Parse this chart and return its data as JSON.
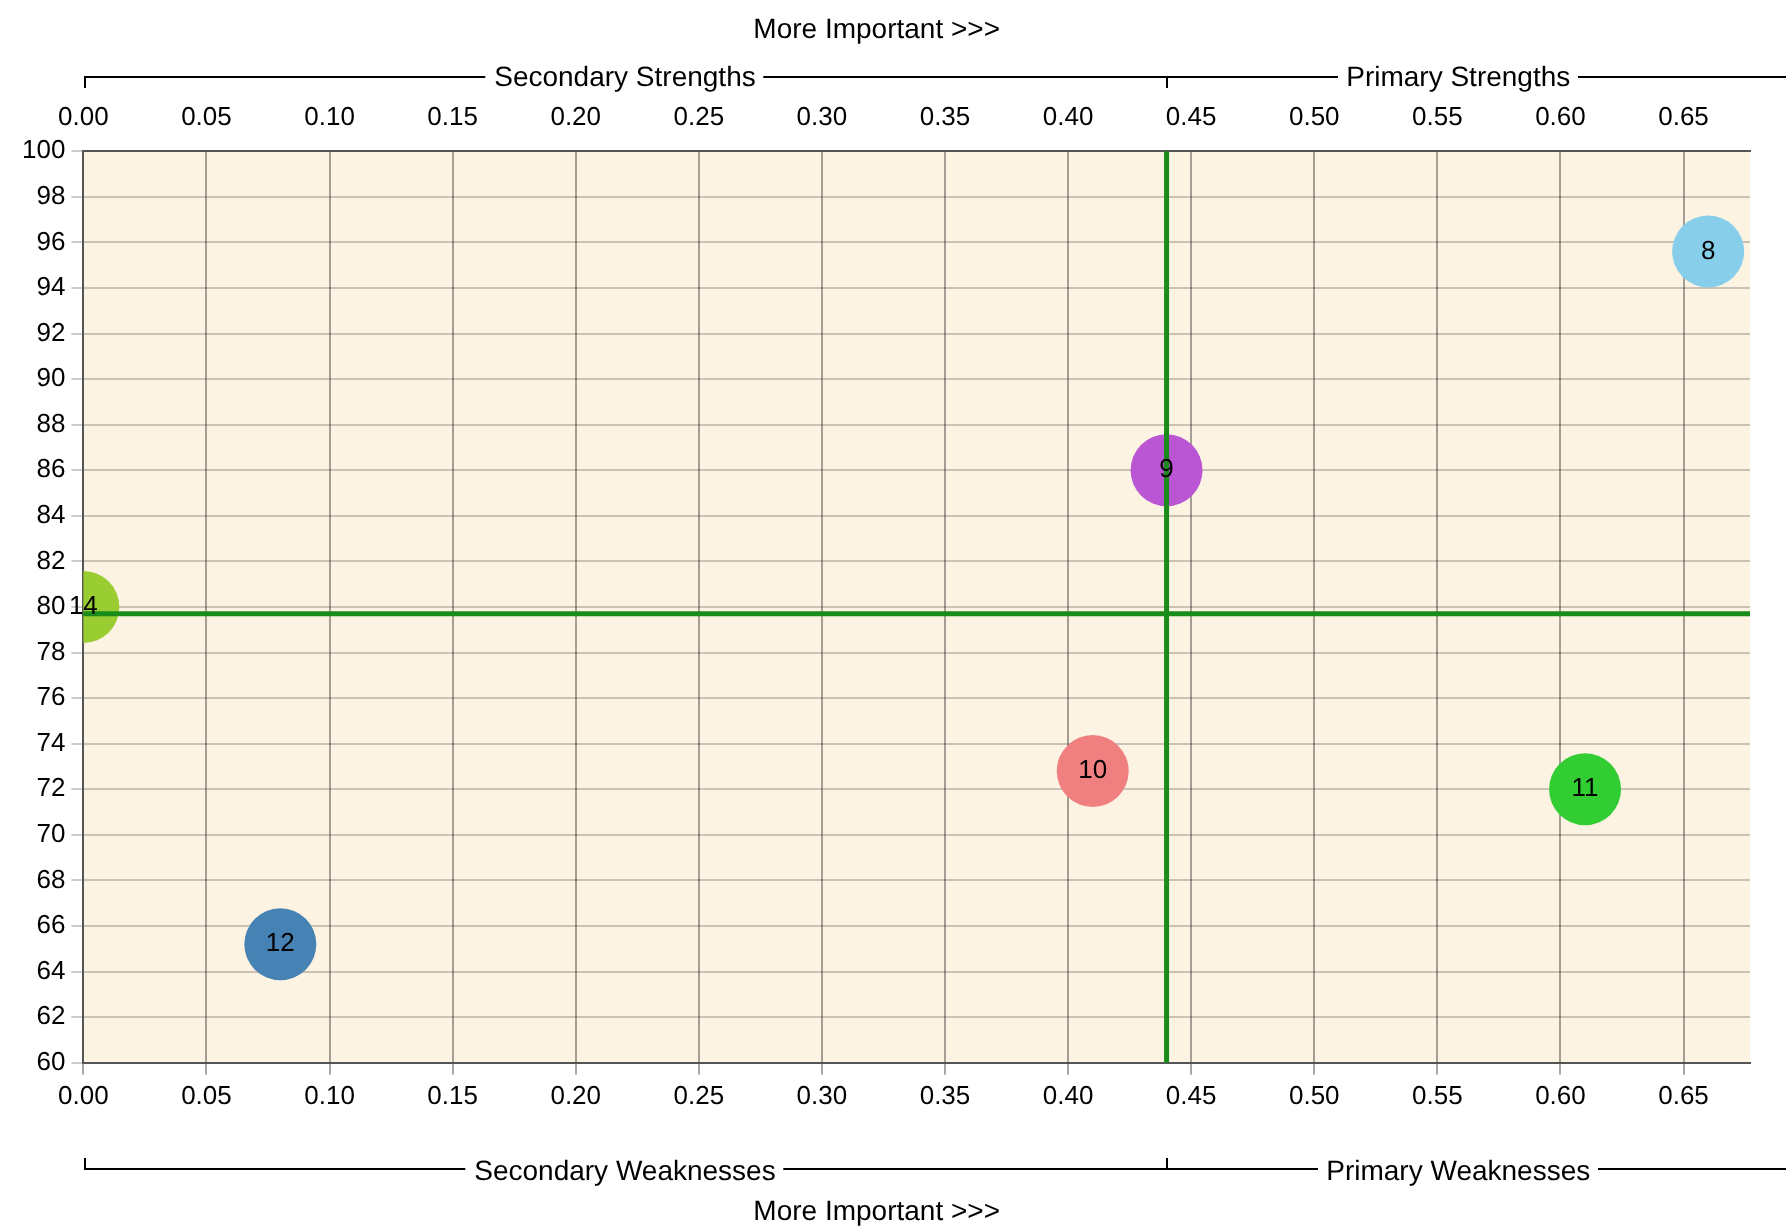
{
  "chart_data": {
    "type": "scatter",
    "xlabel": "More Important >>>",
    "x2label": "More Important >>>",
    "annotations": [
      "Secondary Strengths",
      "Primary Strengths",
      "Secondary Weaknesses",
      "Primary Weaknesses"
    ],
    "series": [
      {
        "name": "8",
        "color": "#87ceeb",
        "x": [
          0.66
        ],
        "values": [
          95.6
        ]
      },
      {
        "name": "9",
        "color": "#ba55d3",
        "x": [
          0.44
        ],
        "values": [
          86
        ]
      },
      {
        "name": "10",
        "color": "#f08080",
        "x": [
          0.41
        ],
        "values": [
          72.8
        ]
      },
      {
        "name": "11",
        "color": "#32cd32",
        "x": [
          0.61
        ],
        "values": [
          72
        ]
      },
      {
        "name": "12",
        "color": "#4682b4",
        "x": [
          0.08
        ],
        "values": [
          65.2
        ]
      },
      {
        "name": "14",
        "color": "#9acd32",
        "x": [
          0
        ],
        "values": [
          80
        ]
      }
    ],
    "xlim": [
      0,
      0.677
    ],
    "x2lim": [
      0,
      0.677
    ],
    "xticks": [
      {
        "value": 0,
        "label": "0.00"
      },
      0.05,
      {
        "value": 0.1,
        "label": "0.10"
      },
      0.15,
      {
        "value": 0.2,
        "label": "0.20"
      },
      0.25,
      {
        "value": 0.3,
        "label": "0.30"
      },
      0.35,
      {
        "value": 0.4,
        "label": "0.40"
      },
      0.45,
      {
        "value": 0.5,
        "label": "0.50"
      },
      0.55,
      {
        "value": 0.6,
        "label": "0.60"
      },
      0.65
    ],
    "x2ticks": [
      {
        "value": 0,
        "label": "0.00"
      },
      0.05,
      {
        "value": 0.1,
        "label": "0.10"
      },
      0.15,
      {
        "value": 0.2,
        "label": "0.20"
      },
      0.25,
      {
        "value": 0.3,
        "label": "0.30"
      },
      0.35,
      {
        "value": 0.4,
        "label": "0.40"
      },
      0.45,
      {
        "value": 0.5,
        "label": "0.50"
      },
      0.55,
      {
        "value": 0.6,
        "label": "0.60"
      },
      0.65
    ],
    "ylim": [
      60,
      100
    ],
    "yticks": [
      60,
      62,
      64,
      66,
      68,
      70,
      72,
      74,
      76,
      78,
      80,
      82,
      84,
      86,
      88,
      90,
      92,
      94,
      96,
      98,
      100
    ],
    "ref_lines": [
      {
        "axis": "x",
        "value": 0.44,
        "color": "#1a8c1a"
      },
      {
        "axis": "y",
        "value": 79.7,
        "color": "#1a8c1a"
      }
    ],
    "grid": true,
    "legend": false,
    "marker": "circle"
  }
}
